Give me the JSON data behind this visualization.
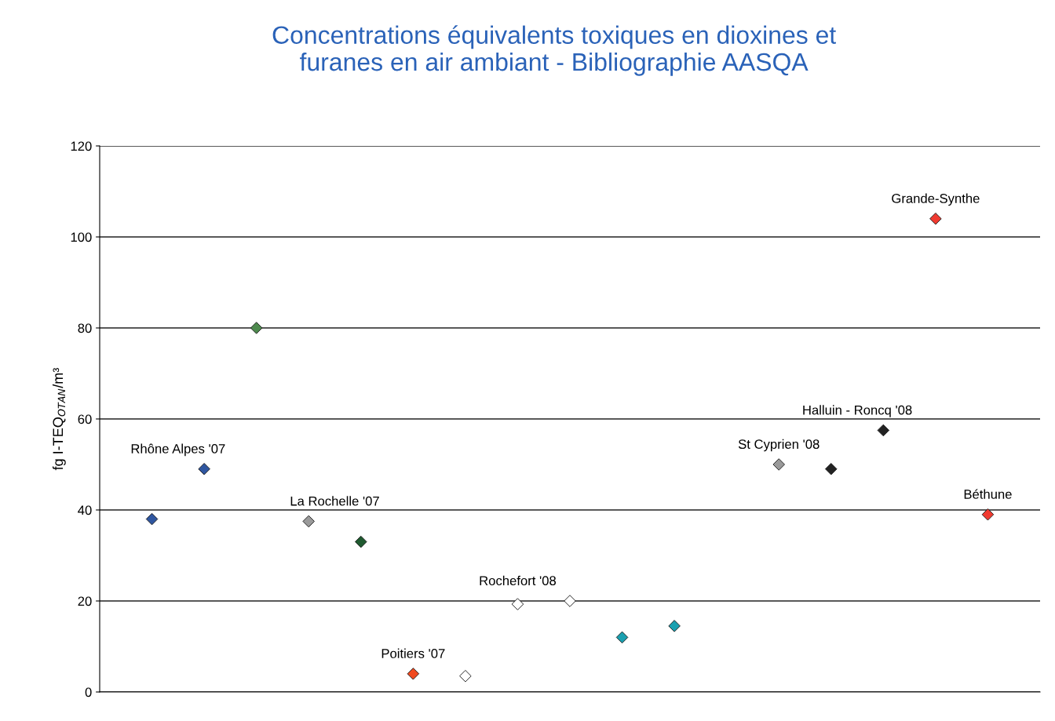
{
  "chart_data": {
    "type": "scatter",
    "title": "Concentrations équivalents toxiques en dioxines et\nfuranes en air ambiant - Bibliographie AASQA",
    "ylabel": "fg I-TEQ$_{OTAN}$/m³",
    "categories": [
      null,
      null,
      null,
      null,
      null,
      null,
      null,
      null,
      null,
      null,
      null,
      null,
      null,
      null,
      null,
      null,
      null
    ],
    "series": [
      {
        "name": "Rhône Alpes '07",
        "values": [
          38,
          49,
          null,
          null,
          null,
          null,
          null,
          null,
          null,
          null,
          null,
          null,
          null,
          null,
          null,
          null,
          null
        ],
        "color": "#2f56a0"
      },
      {
        "values": [
          null,
          null,
          80,
          null,
          null,
          null,
          null,
          null,
          null,
          null,
          null,
          null,
          null,
          null,
          null,
          null,
          null
        ],
        "color": "#4e8a4e"
      },
      {
        "name": "La Rochelle '07",
        "values": [
          null,
          null,
          null,
          37.5,
          33,
          null,
          null,
          null,
          null,
          null,
          null,
          null,
          null,
          null,
          null,
          null,
          null
        ],
        "colors": [
          null,
          null,
          null,
          "#9a9a9a",
          "#1f5a30",
          null,
          null,
          null,
          null,
          null,
          null,
          null,
          null,
          null,
          null,
          null,
          null
        ]
      },
      {
        "name": "Poitiers '07",
        "values": [
          null,
          null,
          null,
          null,
          null,
          4,
          null,
          null,
          null,
          null,
          null,
          null,
          null,
          null,
          null,
          null,
          null
        ],
        "color": "#f04a20"
      },
      {
        "name": "Rochefort '08",
        "values": [
          null,
          null,
          null,
          null,
          null,
          null,
          3.5,
          19.3,
          20,
          null,
          null,
          null,
          null,
          null,
          null,
          null,
          null
        ],
        "color": "#ffffff"
      },
      {
        "values": [
          null,
          null,
          null,
          null,
          null,
          null,
          null,
          null,
          null,
          12,
          14.5,
          null,
          null,
          null,
          null,
          null,
          null
        ],
        "color": "#1aa0b0"
      },
      {
        "name": "St Cyprien '08",
        "values": [
          null,
          null,
          null,
          null,
          null,
          null,
          null,
          null,
          null,
          null,
          null,
          null,
          50,
          null,
          null,
          null,
          null
        ],
        "color": "#9a9a9a"
      },
      {
        "name": "Halluin - Roncq '08",
        "values": [
          null,
          null,
          null,
          null,
          null,
          null,
          null,
          null,
          null,
          null,
          null,
          null,
          null,
          49,
          57.5,
          null,
          null
        ],
        "color": "#222222"
      },
      {
        "name": "Grande-Synthe",
        "values": [
          null,
          null,
          null,
          null,
          null,
          null,
          null,
          null,
          null,
          null,
          null,
          null,
          null,
          null,
          null,
          104,
          null
        ],
        "color": "#f03a30"
      },
      {
        "name": "Béthune",
        "values": [
          null,
          null,
          null,
          null,
          null,
          null,
          null,
          null,
          null,
          null,
          null,
          null,
          null,
          null,
          null,
          null,
          39
        ],
        "color": "#f03a30"
      }
    ],
    "marker": "diamond",
    "ylim": [
      0,
      120
    ],
    "yticks": [
      0,
      20,
      40,
      60,
      80,
      100,
      120
    ],
    "grid": "y",
    "legend": false
  }
}
